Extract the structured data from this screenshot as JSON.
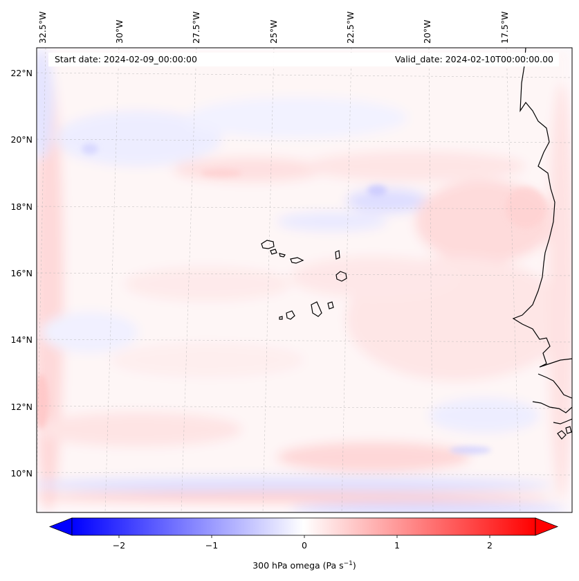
{
  "header": {
    "start_date": "Start date: 2024-02-09_00:00:00",
    "valid_date": "Valid_date: 2024-02-10T00:00:00.00"
  },
  "map": {
    "lon_labels": [
      "32.5°W",
      "30°W",
      "27.5°W",
      "25°W",
      "22.5°W",
      "20°W",
      "17.5°W"
    ],
    "lat_labels": [
      "22°N",
      "20°N",
      "18°N",
      "16°N",
      "14°N",
      "12°N",
      "10°N"
    ]
  },
  "colorbar": {
    "label": "300 hPa omega (Pa s",
    "label_sup": "−1",
    "label_end": ")",
    "ticks": [
      "−2",
      "−1",
      "0",
      "1",
      "2"
    ],
    "min_color": "#0000ff",
    "mid_color": "#ffffff",
    "max_color": "#ff0000"
  },
  "colors": {
    "coastline": "#000000",
    "gridline": "#b0b0b0"
  }
}
